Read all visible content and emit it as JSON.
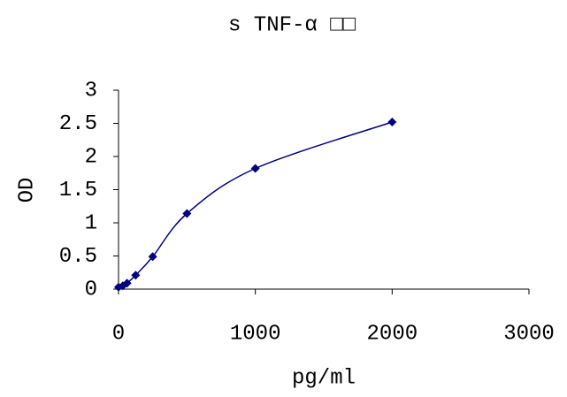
{
  "chart_data": {
    "type": "line",
    "title": "s TNF-α □□",
    "x_label": "pg/ml",
    "y_label": "OD",
    "x": [
      0,
      31.25,
      62.5,
      125,
      250,
      500,
      1000,
      2000
    ],
    "values": [
      0.03,
      0.05,
      0.09,
      0.21,
      0.49,
      1.14,
      1.82,
      2.52
    ],
    "color": "#000080",
    "smooth": true,
    "marker": "diamond",
    "xlim": [
      0,
      3000
    ],
    "xticks": [
      0,
      1000,
      2000,
      3000
    ],
    "ylim": [
      0,
      3
    ],
    "yticks": [
      0,
      0.5,
      1,
      1.5,
      2,
      2.5,
      3
    ],
    "grid": false
  }
}
